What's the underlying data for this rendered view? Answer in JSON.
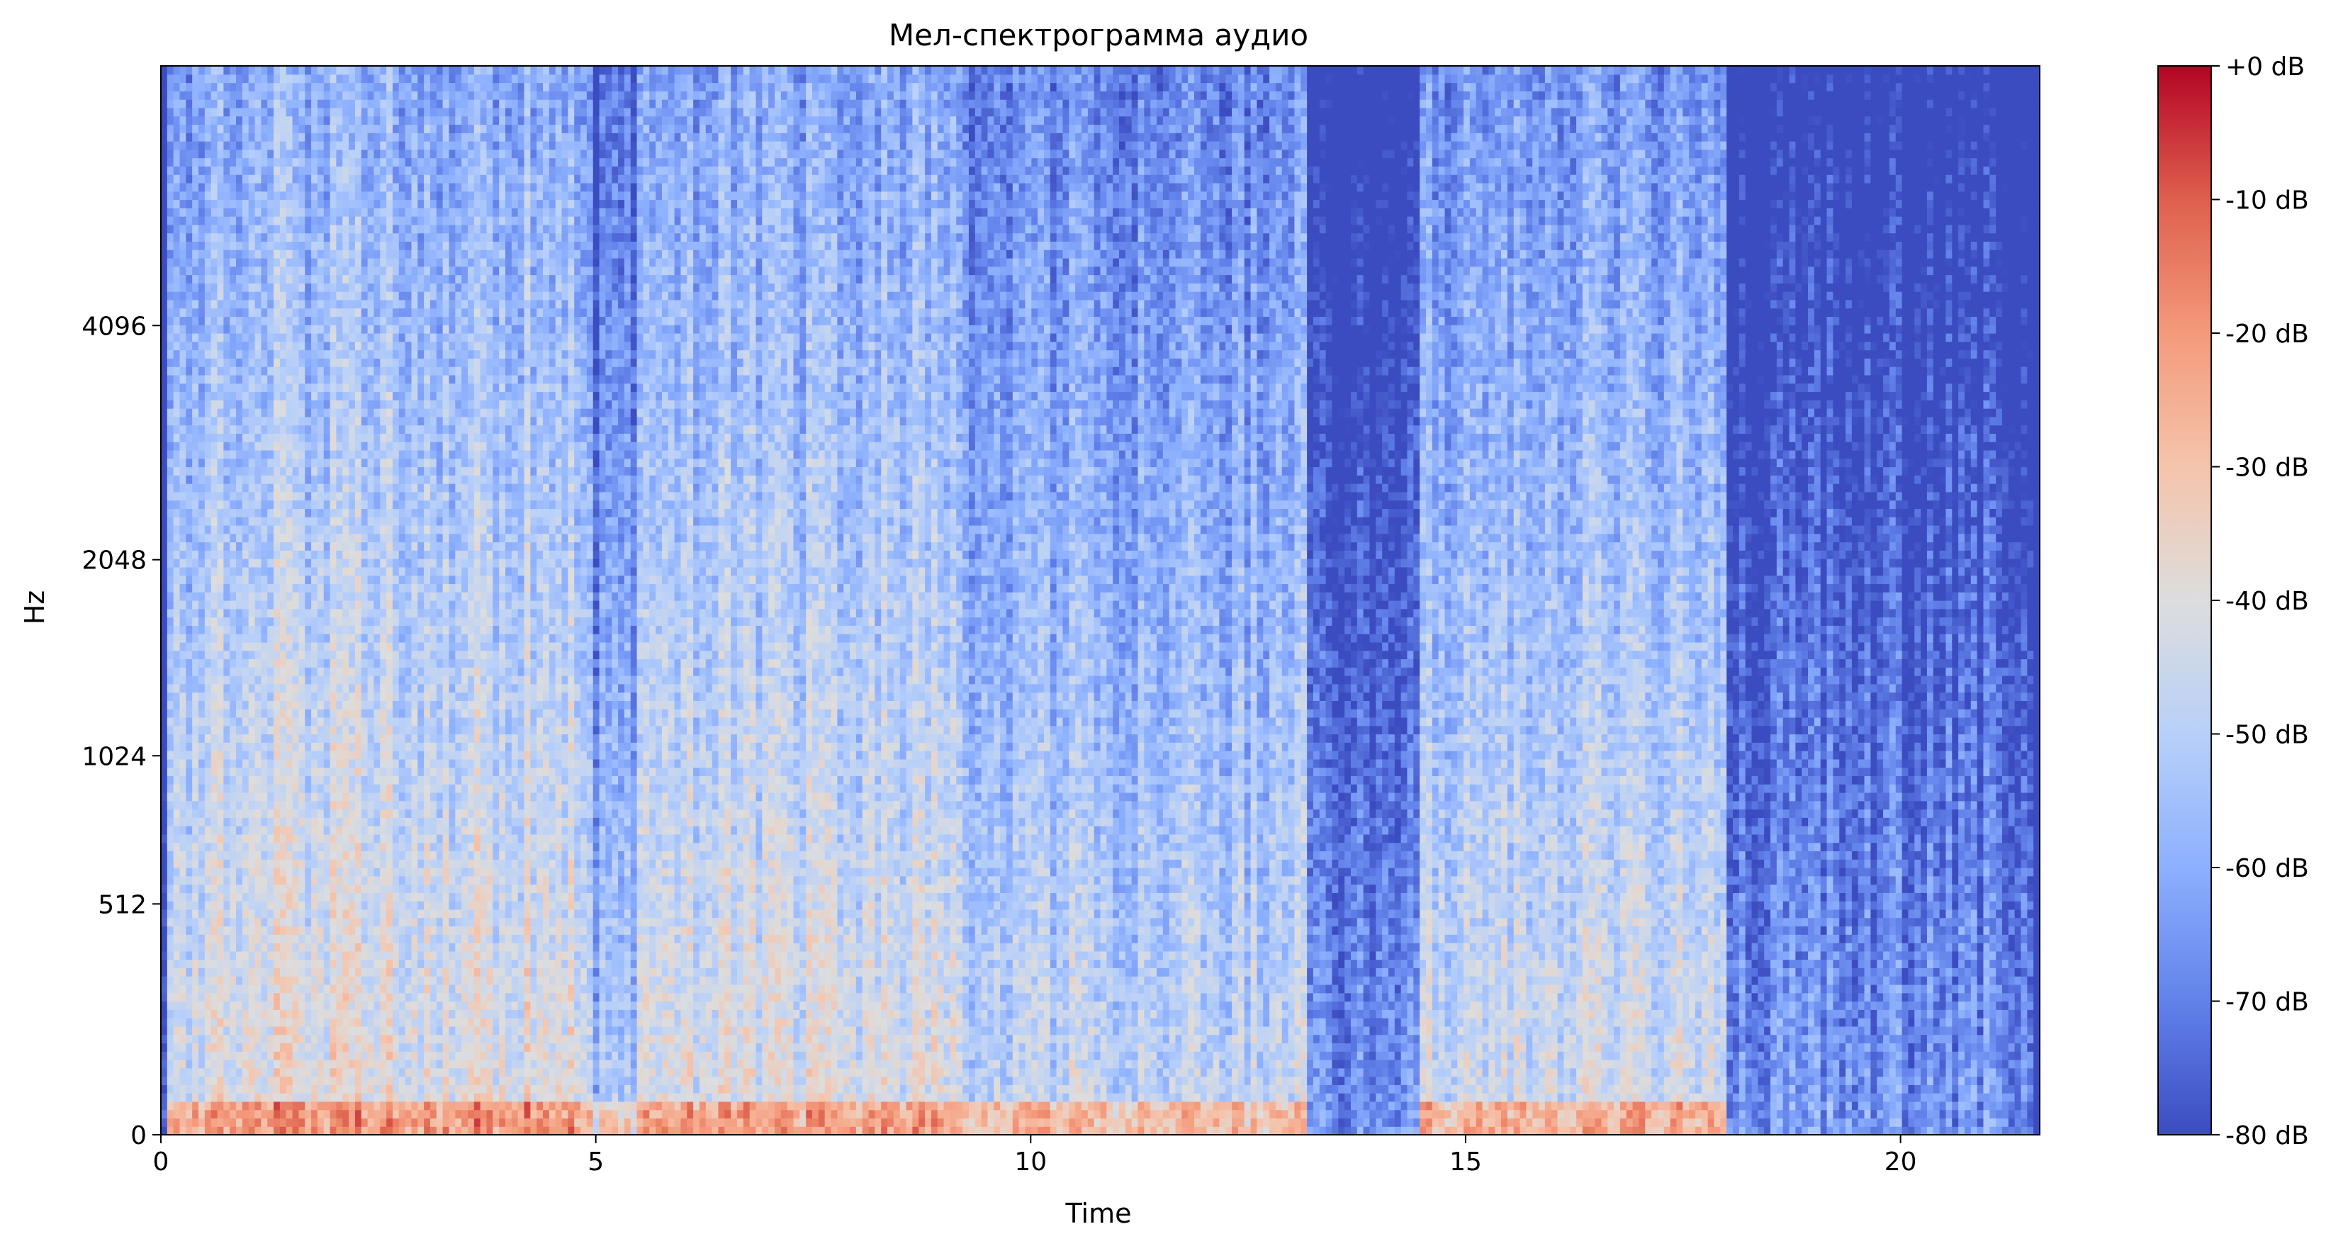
{
  "chart_data": {
    "type": "heatmap",
    "title": "Мел-спектрограмма аудио",
    "xlabel": "Time",
    "ylabel": "Hz",
    "xlim": [
      0,
      21.6
    ],
    "x_ticks": [
      {
        "value": 0,
        "label": "0"
      },
      {
        "value": 5,
        "label": "5"
      },
      {
        "value": 10,
        "label": "10"
      },
      {
        "value": 15,
        "label": "15"
      },
      {
        "value": 20,
        "label": "20"
      }
    ],
    "y_scale": "mel",
    "ylim_hz": [
      0,
      8192
    ],
    "y_ticks": [
      {
        "value": 0,
        "label": "0"
      },
      {
        "value": 512,
        "label": "512"
      },
      {
        "value": 1024,
        "label": "1024"
      },
      {
        "value": 2048,
        "label": "2048"
      },
      {
        "value": 4096,
        "label": "4096"
      }
    ],
    "colormap": "coolwarm",
    "colormap_stops": [
      "#3b4cc0",
      "#6282ea",
      "#8db0fe",
      "#b8d0f9",
      "#dddddd",
      "#f5c4ac",
      "#f49a7b",
      "#de604d",
      "#b40426"
    ],
    "colorbar": {
      "range_db": [
        -80,
        0
      ],
      "ticks": [
        {
          "value": 0,
          "label": "+0 dB"
        },
        {
          "value": -10,
          "label": "-10 dB"
        },
        {
          "value": -20,
          "label": "-20 dB"
        },
        {
          "value": -30,
          "label": "-30 dB"
        },
        {
          "value": -40,
          "label": "-40 dB"
        },
        {
          "value": -50,
          "label": "-50 dB"
        },
        {
          "value": -60,
          "label": "-60 dB"
        },
        {
          "value": -70,
          "label": "-70 dB"
        },
        {
          "value": -80,
          "label": "-80 dB"
        }
      ]
    },
    "segments": [
      {
        "t": [
          0.1,
          0.55
        ],
        "level_db": -45
      },
      {
        "t": [
          0.55,
          4.95
        ],
        "level_db": -38
      },
      {
        "t": [
          4.95,
          5.5
        ],
        "level_db": -55
      },
      {
        "t": [
          5.5,
          9.2
        ],
        "level_db": -40
      },
      {
        "t": [
          9.2,
          13.2
        ],
        "level_db": -47
      },
      {
        "t": [
          13.2,
          14.5
        ],
        "level_db": -65
      },
      {
        "t": [
          14.5,
          18.0
        ],
        "level_db": -44
      },
      {
        "t": [
          18.0,
          21.5
        ],
        "level_db": -65
      }
    ]
  }
}
